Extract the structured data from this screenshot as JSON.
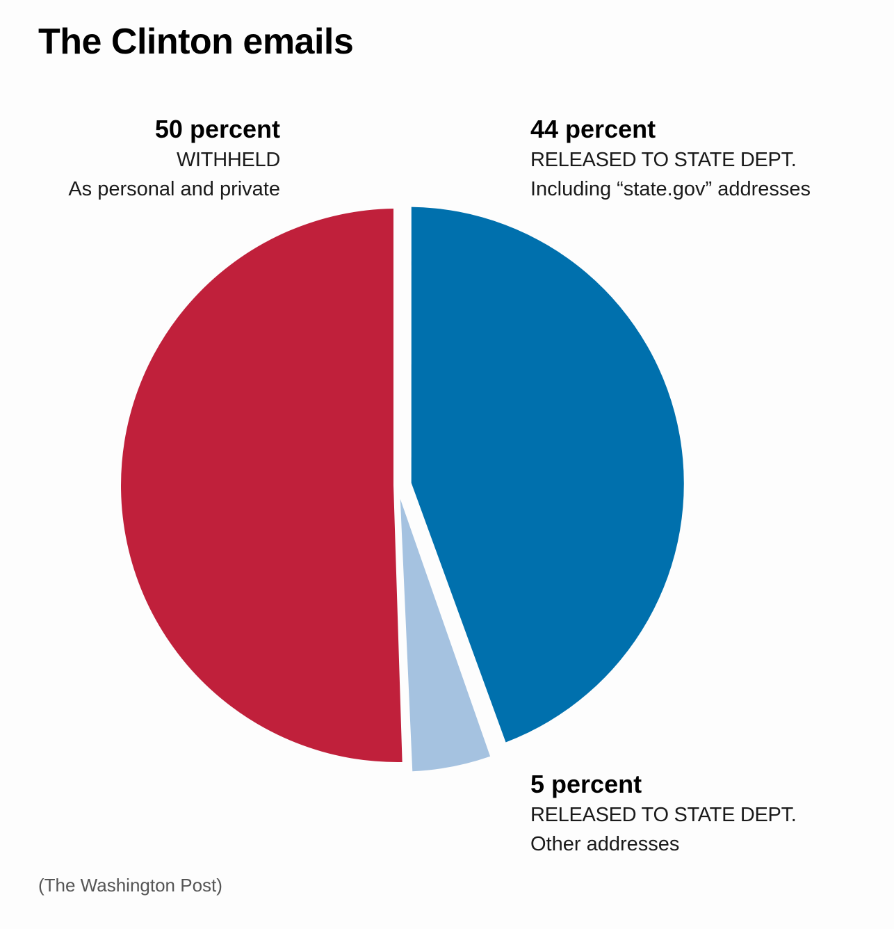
{
  "title": "The Clinton emails",
  "credit": "(The Washington Post)",
  "colors": {
    "withheld": "#c0203b",
    "released_state": "#0070ad",
    "released_other": "#a5c2e0"
  },
  "labels": [
    {
      "pct": "50 percent",
      "category": "WITHHELD",
      "sub": "As personal and private"
    },
    {
      "pct": "44 percent",
      "category": "RELEASED TO STATE DEPT.",
      "sub": "Including “state.gov” addresses"
    },
    {
      "pct": "5 percent",
      "category": "RELEASED TO STATE DEPT.",
      "sub": "Other addresses"
    }
  ],
  "chart_data": {
    "type": "pie",
    "title": "The Clinton emails",
    "slices": [
      {
        "label": "WITHHELD",
        "value": 50,
        "color": "#c0203b",
        "exploded": false
      },
      {
        "label": "RELEASED TO STATE DEPT. (state.gov)",
        "value": 44,
        "color": "#0070ad",
        "exploded": true
      },
      {
        "label": "RELEASED TO STATE DEPT. (other)",
        "value": 5,
        "color": "#a5c2e0",
        "exploded": true
      }
    ],
    "start": "clockwise from top, released slices first"
  }
}
